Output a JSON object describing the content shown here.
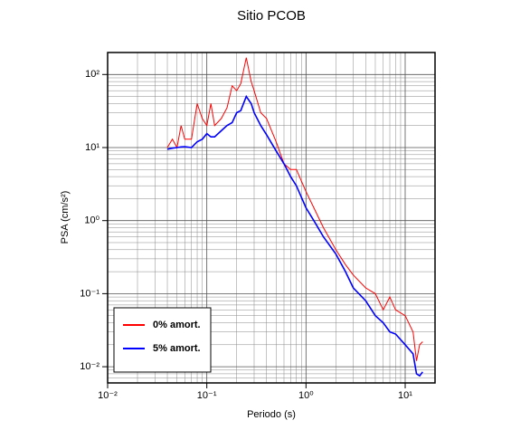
{
  "chart_data": {
    "type": "line",
    "title": "Sitio PCOB",
    "x_label": "Periodo (s)",
    "y_label": "PSA (cm/s²)",
    "log_x": true,
    "log_y": true,
    "grid": true,
    "minor_grid": true,
    "legend": "lower left",
    "xlim": [
      0.01,
      20
    ],
    "ylim": [
      0.006,
      200
    ],
    "xticks": [
      {
        "value": 0.01,
        "label": "10⁻²"
      },
      {
        "value": 0.1,
        "label": "10⁻¹"
      },
      {
        "value": 1,
        "label": "10⁰"
      },
      {
        "value": 10,
        "label": "10¹"
      }
    ],
    "yticks": [
      {
        "value": 0.01,
        "label": "10⁻²"
      },
      {
        "value": 0.1,
        "label": "10⁻¹"
      },
      {
        "value": 1,
        "label": "10⁰"
      },
      {
        "value": 10,
        "label": "10¹"
      },
      {
        "value": 100,
        "label": "10²"
      }
    ],
    "x": [
      0.04,
      0.045,
      0.05,
      0.055,
      0.06,
      0.07,
      0.08,
      0.09,
      0.1,
      0.11,
      0.12,
      0.14,
      0.16,
      0.18,
      0.2,
      0.22,
      0.25,
      0.28,
      0.3,
      0.35,
      0.4,
      0.5,
      0.6,
      0.7,
      0.8,
      1,
      1.2,
      1.5,
      2,
      2.5,
      3,
      4,
      5,
      6,
      7,
      8,
      10,
      12,
      13,
      14,
      15
    ],
    "series": [
      {
        "name": "0% amort.",
        "color": "#ff0000",
        "width": 1,
        "values": [
          10,
          13,
          10,
          20,
          13,
          13,
          40,
          25,
          20,
          40,
          20,
          25,
          35,
          70,
          60,
          75,
          170,
          80,
          60,
          30,
          25,
          12,
          6,
          5,
          5,
          2.5,
          1.5,
          0.8,
          0.4,
          0.25,
          0.18,
          0.12,
          0.1,
          0.06,
          0.09,
          0.06,
          0.05,
          0.03,
          0.012,
          0.02,
          0.022
        ]
      },
      {
        "name": "5% amort.",
        "color": "#0000ff",
        "width": 1.6,
        "values": [
          9.5,
          9.8,
          10,
          10.2,
          10.3,
          10,
          12,
          13,
          15.5,
          14,
          14,
          17,
          20,
          22,
          30,
          32,
          50,
          40,
          30,
          20,
          15,
          9,
          6,
          4,
          3,
          1.5,
          1.0,
          0.6,
          0.35,
          0.2,
          0.12,
          0.08,
          0.05,
          0.04,
          0.03,
          0.028,
          0.02,
          0.015,
          0.008,
          0.0075,
          0.0085
        ]
      }
    ]
  }
}
